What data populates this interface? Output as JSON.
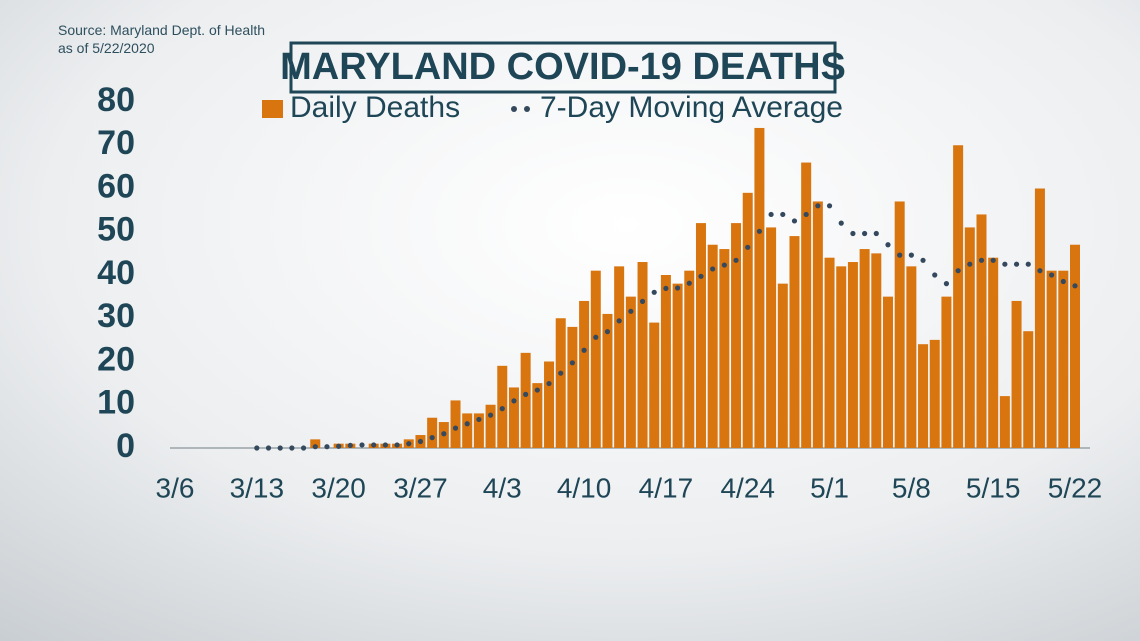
{
  "chart_data": {
    "type": "bar",
    "title": "MARYLAND COVID-19 DEATHS",
    "source": "Source: Maryland Dept. of Health",
    "date_note": "as of 5/22/2020",
    "categories": [
      "3/6",
      null,
      null,
      null,
      null,
      null,
      null,
      "3/13",
      null,
      null,
      null,
      null,
      null,
      null,
      "3/20",
      null,
      null,
      null,
      null,
      null,
      null,
      "3/27",
      null,
      null,
      null,
      null,
      null,
      null,
      "4/3",
      null,
      null,
      null,
      null,
      null,
      null,
      "4/10",
      null,
      null,
      null,
      null,
      null,
      null,
      "4/17",
      null,
      null,
      null,
      null,
      null,
      null,
      "4/24",
      null,
      null,
      null,
      null,
      null,
      null,
      "5/1",
      null,
      null,
      null,
      null,
      null,
      null,
      "5/8",
      null,
      null,
      null,
      null,
      null,
      null,
      "5/15",
      null,
      null,
      null,
      null,
      null,
      null,
      "5/22"
    ],
    "series": [
      {
        "name": "Daily Deaths",
        "type": "bar",
        "color": "#d9750f",
        "values": [
          0,
          0,
          0,
          0,
          0,
          0,
          0,
          0,
          0,
          0,
          0,
          0,
          2,
          0,
          1,
          1,
          0,
          1,
          1,
          1,
          2,
          3,
          7,
          6,
          11,
          8,
          8,
          10,
          19,
          14,
          22,
          15,
          20,
          30,
          28,
          34,
          41,
          31,
          42,
          35,
          43,
          29,
          40,
          38,
          41,
          52,
          47,
          46,
          52,
          59,
          74,
          51,
          38,
          49,
          66,
          57,
          44,
          42,
          43,
          46,
          45,
          35,
          57,
          42,
          24,
          25,
          35,
          70,
          51,
          54,
          44,
          12,
          34,
          27,
          60,
          41,
          41,
          47
        ]
      },
      {
        "name": "7-Day Moving Average",
        "type": "dots",
        "color": "#34495e",
        "values": [
          null,
          null,
          null,
          null,
          null,
          null,
          null,
          0,
          0,
          0,
          0,
          0,
          0.3,
          0.3,
          0.4,
          0.6,
          0.7,
          0.7,
          0.7,
          0.7,
          1,
          1.5,
          2.4,
          3.3,
          4.6,
          5.6,
          6.6,
          7.6,
          9.1,
          10.9,
          12.4,
          13.4,
          14.9,
          17.3,
          19.7,
          22.6,
          25.6,
          26.9,
          29.4,
          31.6,
          33.9,
          36,
          36.9,
          37,
          38.1,
          39.7,
          41.4,
          42.3,
          43.4,
          46.4,
          50.1,
          54,
          54,
          52.5,
          54,
          56,
          56,
          52,
          49.6,
          49.6,
          49.6,
          47,
          44.6,
          44.6,
          43.4,
          40,
          38,
          41,
          42.5,
          43.4,
          43.4,
          42.5,
          42.5,
          42.5,
          41,
          40,
          38.5,
          37.5
        ]
      }
    ],
    "ylim": [
      0,
      80
    ],
    "yticks": [
      0,
      10,
      20,
      30,
      40,
      50,
      60,
      70,
      80
    ],
    "grid": false
  }
}
